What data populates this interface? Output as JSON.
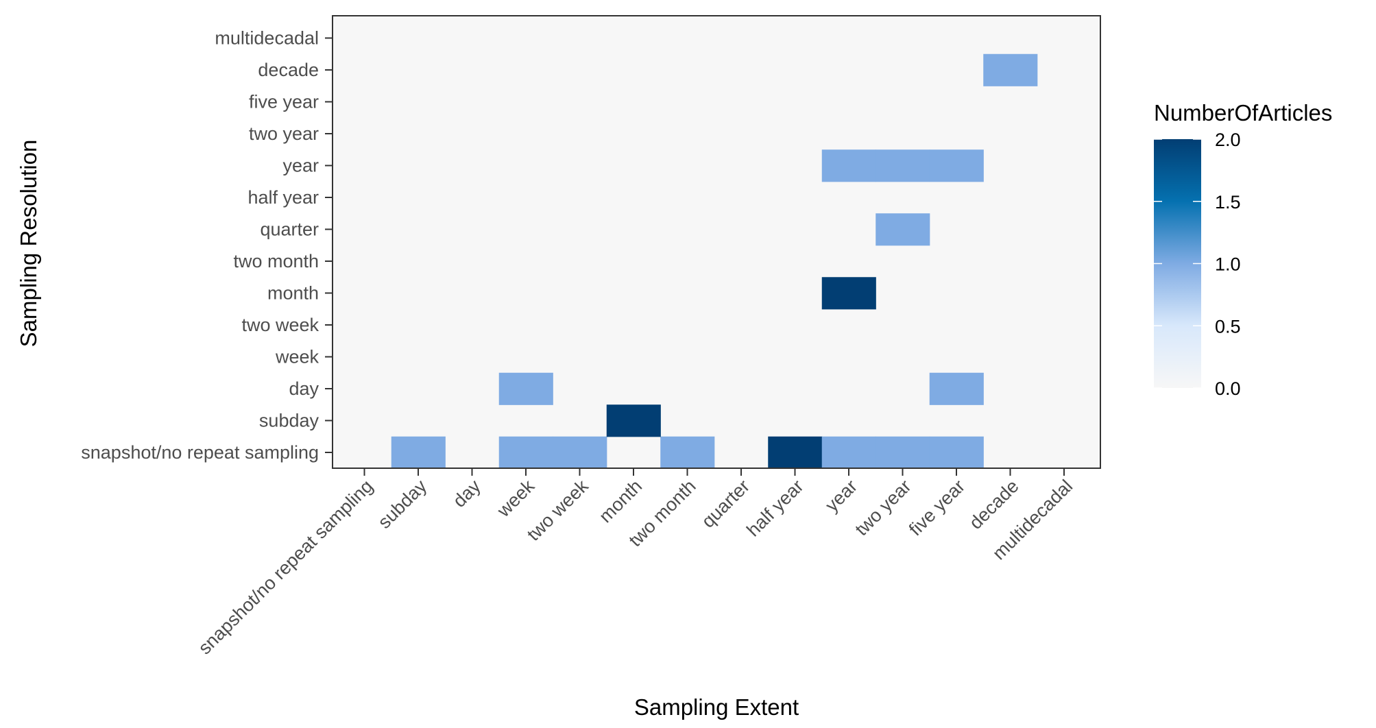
{
  "chart_data": {
    "type": "heatmap",
    "title": "",
    "xlabel": "Sampling Extent",
    "ylabel": "Sampling Resolution",
    "x_categories": [
      "snapshot/no repeat sampling",
      "subday",
      "day",
      "week",
      "two week",
      "month",
      "two month",
      "quarter",
      "half year",
      "year",
      "two year",
      "five year",
      "decade",
      "multidecadal"
    ],
    "y_categories": [
      "snapshot/no repeat sampling",
      "subday",
      "day",
      "week",
      "two week",
      "month",
      "two month",
      "quarter",
      "half year",
      "year",
      "two year",
      "five year",
      "decade",
      "multidecadal"
    ],
    "cells": [
      {
        "x": "subday",
        "y": "snapshot/no repeat sampling",
        "value": 1
      },
      {
        "x": "week",
        "y": "snapshot/no repeat sampling",
        "value": 1
      },
      {
        "x": "two week",
        "y": "snapshot/no repeat sampling",
        "value": 1
      },
      {
        "x": "two month",
        "y": "snapshot/no repeat sampling",
        "value": 1
      },
      {
        "x": "half year",
        "y": "snapshot/no repeat sampling",
        "value": 2
      },
      {
        "x": "year",
        "y": "snapshot/no repeat sampling",
        "value": 1
      },
      {
        "x": "two year",
        "y": "snapshot/no repeat sampling",
        "value": 1
      },
      {
        "x": "five year",
        "y": "snapshot/no repeat sampling",
        "value": 1
      },
      {
        "x": "month",
        "y": "subday",
        "value": 2
      },
      {
        "x": "week",
        "y": "day",
        "value": 1
      },
      {
        "x": "five year",
        "y": "day",
        "value": 1
      },
      {
        "x": "year",
        "y": "month",
        "value": 2
      },
      {
        "x": "two year",
        "y": "quarter",
        "value": 1
      },
      {
        "x": "year",
        "y": "year",
        "value": 1
      },
      {
        "x": "two year",
        "y": "year",
        "value": 1
      },
      {
        "x": "five year",
        "y": "year",
        "value": 1
      },
      {
        "x": "decade",
        "y": "decade",
        "value": 1
      }
    ],
    "legend": {
      "title": "NumberOfArticles",
      "ticks": [
        "0.0",
        "0.5",
        "1.0",
        "1.5",
        "2.0"
      ],
      "min": 0,
      "max": 2,
      "colors": [
        "#f7f7f7",
        "#d8e8fb",
        "#7fabe3",
        "#0571b0",
        "#023e73"
      ]
    },
    "panel_background": "#f7f7f7",
    "grid": false
  }
}
